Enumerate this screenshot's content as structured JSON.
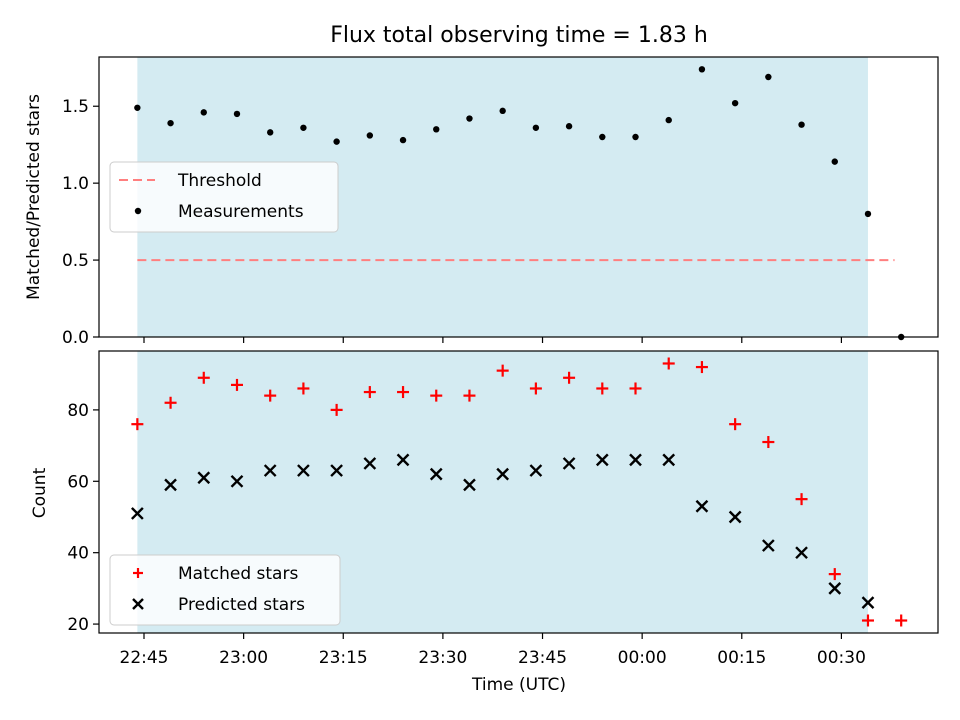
{
  "chart_data": [
    {
      "type": "scatter",
      "title": "Flux total observing time = 1.83 h",
      "xlabel": "",
      "ylabel": "Matched/Predicted stars",
      "ylim": [
        0,
        1.82
      ],
      "yticks": [
        "0.0",
        "0.5",
        "1.0",
        "1.5"
      ],
      "observing_window": [
        "22:44",
        "00:34"
      ],
      "legend_position": "center-left",
      "legend": [
        "Threshold",
        "Measurements"
      ],
      "threshold": {
        "name": "Threshold",
        "value": 0.5,
        "x_range": [
          "22:44",
          "00:38"
        ],
        "color": "#ff7f7f"
      },
      "series": [
        {
          "name": "Measurements",
          "color": "#000000",
          "x": [
            "22:44",
            "22:49",
            "22:54",
            "22:59",
            "23:04",
            "23:09",
            "23:14",
            "23:19",
            "23:24",
            "23:29",
            "23:34",
            "23:39",
            "23:44",
            "23:49",
            "23:54",
            "23:59",
            "00:04",
            "00:09",
            "00:14",
            "00:19",
            "00:24",
            "00:29",
            "00:34",
            "00:39"
          ],
          "values": [
            1.49,
            1.39,
            1.46,
            1.45,
            1.33,
            1.36,
            1.27,
            1.31,
            1.28,
            1.35,
            1.42,
            1.47,
            1.36,
            1.37,
            1.3,
            1.3,
            1.41,
            1.74,
            1.52,
            1.69,
            1.38,
            1.14,
            0.8,
            0.0
          ]
        }
      ]
    },
    {
      "type": "scatter",
      "title": "",
      "xlabel": "Time (UTC)",
      "ylabel": "Count",
      "ylim": [
        17.5,
        96.5
      ],
      "yticks": [
        "20",
        "40",
        "60",
        "80"
      ],
      "xticks": [
        "22:45",
        "23:00",
        "23:15",
        "23:30",
        "23:45",
        "00:00",
        "00:15",
        "00:30"
      ],
      "observing_window": [
        "22:44",
        "00:34"
      ],
      "legend_position": "lower-left",
      "legend": [
        "Matched stars",
        "Predicted stars"
      ],
      "series": [
        {
          "name": "Matched stars",
          "marker": "plus",
          "color": "#ff0000",
          "x": [
            "22:44",
            "22:49",
            "22:54",
            "22:59",
            "23:04",
            "23:09",
            "23:14",
            "23:19",
            "23:24",
            "23:29",
            "23:34",
            "23:39",
            "23:44",
            "23:49",
            "23:54",
            "23:59",
            "00:04",
            "00:09",
            "00:14",
            "00:19",
            "00:24",
            "00:29",
            "00:34",
            "00:39"
          ],
          "values": [
            76,
            82,
            89,
            87,
            84,
            86,
            80,
            85,
            85,
            84,
            84,
            91,
            86,
            89,
            86,
            86,
            93,
            92,
            76,
            71,
            55,
            34,
            21,
            21
          ]
        },
        {
          "name": "Predicted stars",
          "marker": "x",
          "color": "#000000",
          "x": [
            "22:44",
            "22:49",
            "22:54",
            "22:59",
            "23:04",
            "23:09",
            "23:14",
            "23:19",
            "23:24",
            "23:29",
            "23:34",
            "23:39",
            "23:44",
            "23:49",
            "23:54",
            "23:59",
            "00:04",
            "00:09",
            "00:14",
            "00:19",
            "00:24",
            "00:29",
            "00:34"
          ],
          "values": [
            51,
            59,
            61,
            60,
            63,
            63,
            63,
            65,
            66,
            62,
            59,
            62,
            63,
            65,
            66,
            66,
            66,
            53,
            50,
            42,
            40,
            30,
            26
          ]
        }
      ]
    }
  ],
  "colors": {
    "observing_band": "#add8e6",
    "threshold": "#ff7f7f",
    "matched": "#ff0000",
    "predicted": "#000000",
    "measurements": "#000000"
  }
}
